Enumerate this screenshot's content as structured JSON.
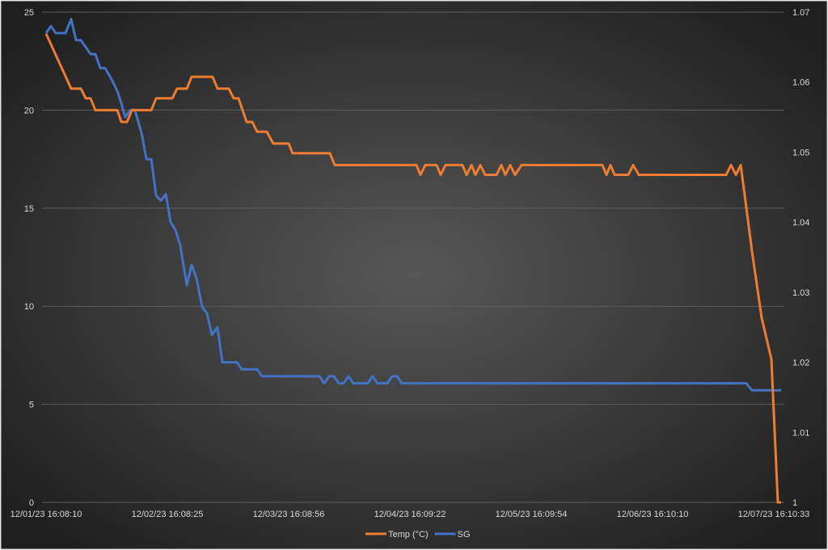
{
  "chart_data": {
    "type": "line",
    "title": "",
    "xlabel": "",
    "ylabel": "",
    "y_left": {
      "range": [
        0,
        25
      ],
      "ticks": [
        "0",
        "5",
        "10",
        "15",
        "20",
        "25"
      ],
      "tick_values": [
        0,
        5,
        10,
        15,
        20,
        25
      ]
    },
    "y_right": {
      "range": [
        1,
        1.07
      ],
      "ticks": [
        "1",
        "1.01",
        "1.02",
        "1.03",
        "1.04",
        "1.05",
        "1.06",
        "1.07"
      ],
      "tick_values": [
        1,
        1.01,
        1.02,
        1.03,
        1.04,
        1.05,
        1.06,
        1.07
      ]
    },
    "x_unit": "days since first reading",
    "x_ticks": [
      "12/01/23 16:08:10",
      "12/02/23 16:08:25",
      "12/03/23 16:08:56",
      "12/04/23 16:09:22",
      "12/05/23 16:09:54",
      "12/06/23 16:10:10",
      "12/07/23 16:10:33"
    ],
    "grid": true,
    "legend_position": "bottom",
    "series": [
      {
        "name": "Temp (°C)",
        "axis": "left",
        "color": "#ed7d31",
        "points": [
          [
            0,
            23.9
          ],
          [
            0.207,
            21.1
          ],
          [
            0.287,
            21.1
          ],
          [
            0.327,
            20.6
          ],
          [
            0.367,
            20.6
          ],
          [
            0.407,
            20
          ],
          [
            0.587,
            20
          ],
          [
            0.62,
            19.4
          ],
          [
            0.667,
            19.4
          ],
          [
            0.707,
            20
          ],
          [
            0.867,
            20
          ],
          [
            0.907,
            20.6
          ],
          [
            1.04,
            20.6
          ],
          [
            1.08,
            21.1
          ],
          [
            1.16,
            21.1
          ],
          [
            1.2,
            21.7
          ],
          [
            1.373,
            21.7
          ],
          [
            1.413,
            21.1
          ],
          [
            1.507,
            21.1
          ],
          [
            1.547,
            20.6
          ],
          [
            1.587,
            20.6
          ],
          [
            1.653,
            19.4
          ],
          [
            1.7,
            19.4
          ],
          [
            1.74,
            18.9
          ],
          [
            1.82,
            18.9
          ],
          [
            1.873,
            18.3
          ],
          [
            2.0,
            18.3
          ],
          [
            2.033,
            17.8
          ],
          [
            2.34,
            17.8
          ],
          [
            2.38,
            17.2
          ],
          [
            3.053,
            17.2
          ],
          [
            3.087,
            16.7
          ],
          [
            3.127,
            17.2
          ],
          [
            3.22,
            17.2
          ],
          [
            3.253,
            16.7
          ],
          [
            3.293,
            17.2
          ],
          [
            3.433,
            17.2
          ],
          [
            3.467,
            16.7
          ],
          [
            3.507,
            17.2
          ],
          [
            3.54,
            16.7
          ],
          [
            3.58,
            17.2
          ],
          [
            3.62,
            16.7
          ],
          [
            3.713,
            16.7
          ],
          [
            3.753,
            17.2
          ],
          [
            3.787,
            16.7
          ],
          [
            3.827,
            17.2
          ],
          [
            3.867,
            16.7
          ],
          [
            3.92,
            17.2
          ],
          [
            4.587,
            17.2
          ],
          [
            4.62,
            16.7
          ],
          [
            4.653,
            17.2
          ],
          [
            4.687,
            16.7
          ],
          [
            4.8,
            16.7
          ],
          [
            4.84,
            17.2
          ],
          [
            4.887,
            16.7
          ],
          [
            5.607,
            16.7
          ],
          [
            5.647,
            17.2
          ],
          [
            5.687,
            16.7
          ],
          [
            5.727,
            17.2
          ],
          [
            5.82,
            12.8
          ],
          [
            5.9,
            9.4
          ],
          [
            5.98,
            7.3
          ],
          [
            6.033,
            0
          ],
          [
            6.06,
            0
          ]
        ]
      },
      {
        "name": "SG",
        "axis": "right",
        "color": "#4472c4",
        "points": [
          [
            0,
            1.067
          ],
          [
            0.04,
            1.068
          ],
          [
            0.08,
            1.067
          ],
          [
            0.16,
            1.067
          ],
          [
            0.207,
            1.069
          ],
          [
            0.247,
            1.066
          ],
          [
            0.287,
            1.066
          ],
          [
            0.367,
            1.064
          ],
          [
            0.407,
            1.064
          ],
          [
            0.447,
            1.062
          ],
          [
            0.487,
            1.062
          ],
          [
            0.553,
            1.06
          ],
          [
            0.593,
            1.0585
          ],
          [
            0.62,
            1.057
          ],
          [
            0.653,
            1.055
          ],
          [
            0.693,
            1.056
          ],
          [
            0.733,
            1.056
          ],
          [
            0.787,
            1.0527
          ],
          [
            0.827,
            1.049
          ],
          [
            0.867,
            1.049
          ],
          [
            0.907,
            1.0438
          ],
          [
            0.947,
            1.0431
          ],
          [
            0.987,
            1.044
          ],
          [
            1.027,
            1.04
          ],
          [
            1.067,
            1.0389
          ],
          [
            1.107,
            1.0366
          ],
          [
            1.16,
            1.031
          ],
          [
            1.2,
            1.0339
          ],
          [
            1.24,
            1.032
          ],
          [
            1.287,
            1.0279
          ],
          [
            1.327,
            1.027
          ],
          [
            1.367,
            1.0239
          ],
          [
            1.413,
            1.025
          ],
          [
            1.453,
            1.02
          ],
          [
            1.573,
            1.02
          ],
          [
            1.613,
            1.019
          ],
          [
            1.74,
            1.019
          ],
          [
            1.78,
            1.018
          ],
          [
            2.253,
            1.018
          ],
          [
            2.293,
            1.017
          ],
          [
            2.333,
            1.018
          ],
          [
            2.373,
            1.018
          ],
          [
            2.413,
            1.017
          ],
          [
            2.453,
            1.017
          ],
          [
            2.493,
            1.018
          ],
          [
            2.533,
            1.017
          ],
          [
            2.653,
            1.017
          ],
          [
            2.693,
            1.018
          ],
          [
            2.733,
            1.017
          ],
          [
            2.813,
            1.017
          ],
          [
            2.853,
            1.018
          ],
          [
            2.893,
            1.018
          ],
          [
            2.933,
            1.017
          ],
          [
            5.773,
            1.017
          ],
          [
            5.82,
            1.016
          ],
          [
            6.06,
            1.016
          ]
        ]
      }
    ]
  }
}
